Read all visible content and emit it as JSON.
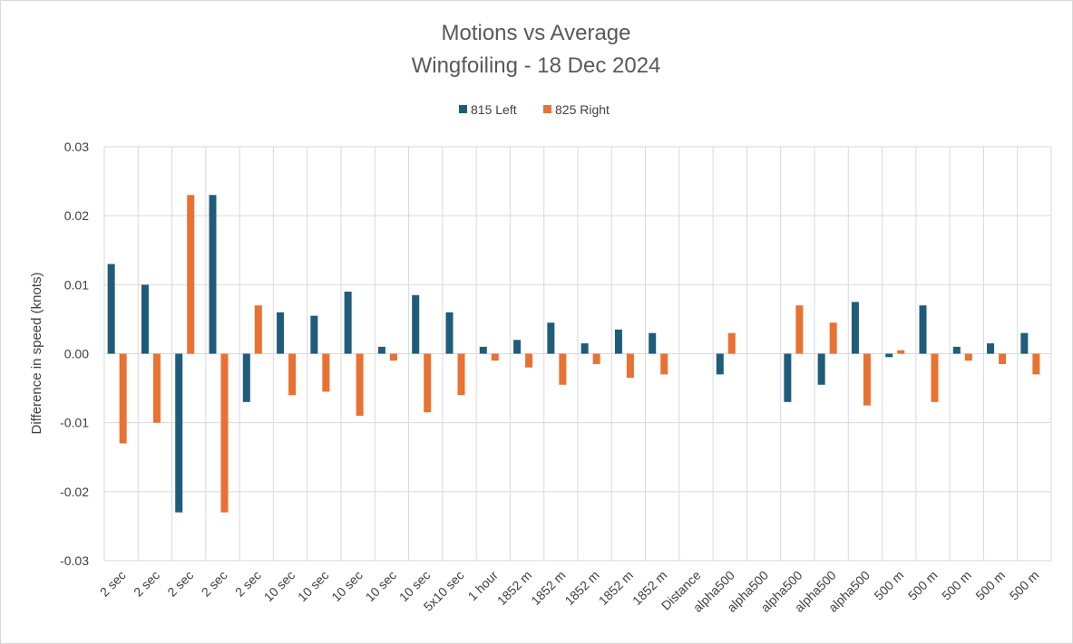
{
  "chart_data": {
    "type": "bar",
    "title": "Motions vs Average",
    "subtitle": "Wingfoiling - 18 Dec 2024",
    "xlabel": "",
    "ylabel": "Difference in speed (knots)",
    "ylim": [
      -0.03,
      0.03
    ],
    "yticks": [
      0.03,
      0.02,
      0.01,
      0.0,
      -0.01,
      -0.02,
      -0.03
    ],
    "ytick_labels": [
      "0.03",
      "0.02",
      "0.01",
      "0.00",
      "-0.01",
      "-0.02",
      "-0.03"
    ],
    "grid": true,
    "legend_position": "top",
    "categories": [
      "2 sec",
      "2 sec",
      "2 sec",
      "2 sec",
      "2 sec",
      "10 sec",
      "10 sec",
      "10 sec",
      "10 sec",
      "10 sec",
      "5x10 sec",
      "1 hour",
      "1852 m",
      "1852 m",
      "1852 m",
      "1852 m",
      "1852 m",
      "Distance",
      "alpha500",
      "alpha500",
      "alpha500",
      "alpha500",
      "alpha500",
      "500 m",
      "500 m",
      "500 m",
      "500 m",
      "500 m"
    ],
    "series": [
      {
        "name": "815 Left",
        "color": "#1f5c7a",
        "values": [
          0.013,
          0.01,
          -0.023,
          0.023,
          -0.007,
          0.006,
          0.0055,
          0.009,
          0.001,
          0.0085,
          0.006,
          0.001,
          0.002,
          0.0045,
          0.0015,
          0.0035,
          0.003,
          0.0,
          -0.003,
          0.0,
          -0.007,
          -0.0045,
          0.0075,
          -0.0005,
          0.007,
          0.001,
          0.0015,
          0.003
        ]
      },
      {
        "name": "825 Right",
        "color": "#e97132",
        "values": [
          -0.013,
          -0.01,
          0.023,
          -0.023,
          0.007,
          -0.006,
          -0.0055,
          -0.009,
          -0.001,
          -0.0085,
          -0.006,
          -0.001,
          -0.002,
          -0.0045,
          -0.0015,
          -0.0035,
          -0.003,
          0.0,
          0.003,
          0.0,
          0.007,
          0.0045,
          -0.0075,
          0.0005,
          -0.007,
          -0.001,
          -0.0015,
          -0.003
        ]
      }
    ]
  }
}
